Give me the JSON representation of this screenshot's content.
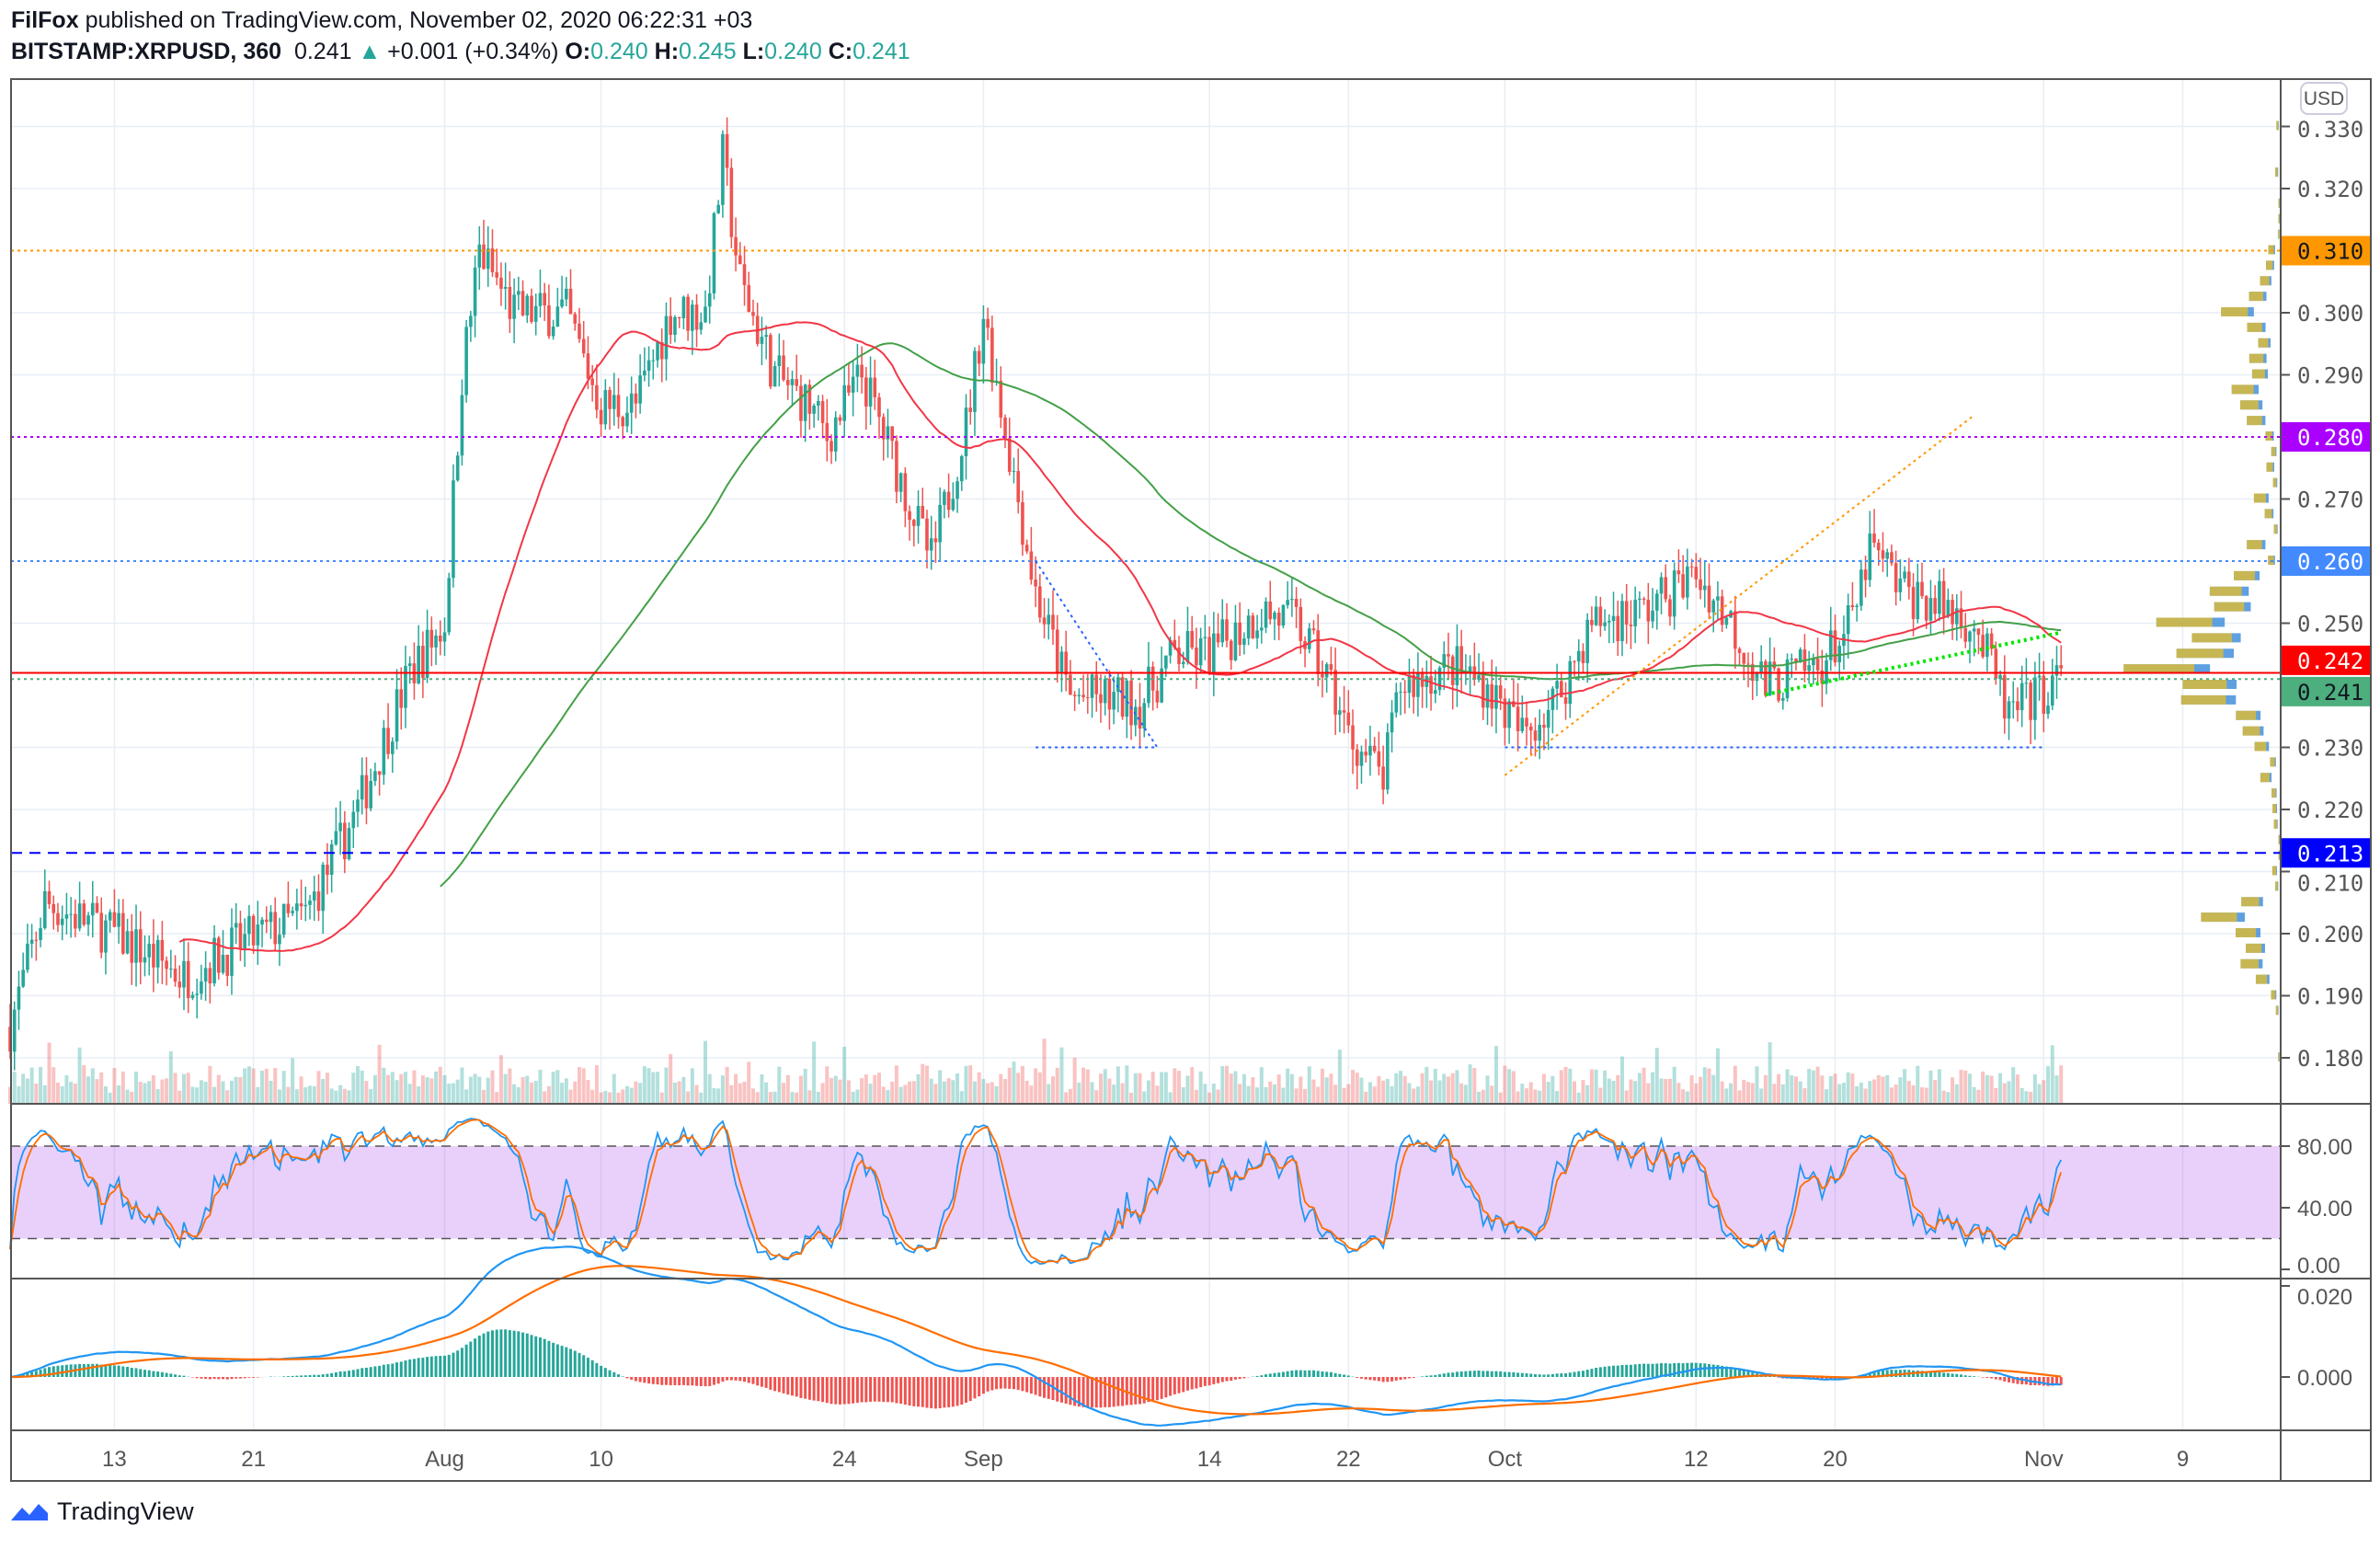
{
  "header": {
    "author": "FilFox",
    "published": "published on TradingView.com, November 02, 2020 06:22:31 +03",
    "symbol": "BITSTAMP:XRPUSD, 360",
    "last": "0.241",
    "change": "+0.001 (+0.34%)",
    "o_label": "O:",
    "o": "0.240",
    "h_label": "H:",
    "h": "0.245",
    "l_label": "L:",
    "l": "0.240",
    "c_label": "C:",
    "c": "0.241"
  },
  "footer": {
    "brand": "TradingView"
  },
  "colors": {
    "up": "#26a69a",
    "down": "#ef5350",
    "ma_slow": "#43a047",
    "ma_fast": "#f23645",
    "stoch_k": "#2196f3",
    "stoch_d": "#ff6d00"
  },
  "chart_data": {
    "type": "candlestick",
    "currency": "USD",
    "interval_hours": 6,
    "y_ticks": [
      "0.330",
      "0.320",
      "0.300",
      "0.290",
      "0.270",
      "0.250",
      "0.230",
      "0.220",
      "0.210",
      "0.200",
      "0.190",
      "0.180"
    ],
    "ylim": [
      0.1755,
      0.3365
    ],
    "x_ticks": [
      {
        "label": "13",
        "day": 6
      },
      {
        "label": "21",
        "day": 14
      },
      {
        "label": "Aug",
        "day": 25
      },
      {
        "label": "10",
        "day": 34
      },
      {
        "label": "24",
        "day": 48
      },
      {
        "label": "Sep",
        "day": 56
      },
      {
        "label": "14",
        "day": 69
      },
      {
        "label": "22",
        "day": 77
      },
      {
        "label": "Oct",
        "day": 86
      },
      {
        "label": "12",
        "day": 97
      },
      {
        "label": "20",
        "day": 105
      },
      {
        "label": "Nov",
        "day": 117
      },
      {
        "label": "9",
        "day": 125
      }
    ],
    "price_path_keypoints": [
      [
        0,
        0.185
      ],
      [
        2,
        0.205
      ],
      [
        6,
        0.2
      ],
      [
        10,
        0.193
      ],
      [
        13,
        0.198
      ],
      [
        17,
        0.203
      ],
      [
        20,
        0.22
      ],
      [
        23,
        0.242
      ],
      [
        25,
        0.25
      ],
      [
        26,
        0.29
      ],
      [
        27,
        0.31
      ],
      [
        29,
        0.3
      ],
      [
        32,
        0.3
      ],
      [
        34,
        0.285
      ],
      [
        36,
        0.285
      ],
      [
        38,
        0.3
      ],
      [
        40,
        0.3
      ],
      [
        41,
        0.325
      ],
      [
        42,
        0.305
      ],
      [
        44,
        0.29
      ],
      [
        46,
        0.285
      ],
      [
        47,
        0.28
      ],
      [
        49,
        0.29
      ],
      [
        51,
        0.275
      ],
      [
        53,
        0.26
      ],
      [
        55,
        0.282
      ],
      [
        56,
        0.3
      ],
      [
        57,
        0.285
      ],
      [
        59,
        0.255
      ],
      [
        61,
        0.238
      ],
      [
        63,
        0.238
      ],
      [
        65,
        0.237
      ],
      [
        67,
        0.245
      ],
      [
        69,
        0.245
      ],
      [
        72,
        0.252
      ],
      [
        74,
        0.25
      ],
      [
        76,
        0.24
      ],
      [
        77,
        0.232
      ],
      [
        79,
        0.225
      ],
      [
        80,
        0.24
      ],
      [
        83,
        0.243
      ],
      [
        85,
        0.24
      ],
      [
        87,
        0.232
      ],
      [
        89,
        0.238
      ],
      [
        91,
        0.25
      ],
      [
        94,
        0.252
      ],
      [
        97,
        0.258
      ],
      [
        99,
        0.25
      ],
      [
        101,
        0.24
      ],
      [
        104,
        0.243
      ],
      [
        106,
        0.25
      ],
      [
        107,
        0.262
      ],
      [
        109,
        0.255
      ],
      [
        111,
        0.253
      ],
      [
        113,
        0.25
      ],
      [
        115,
        0.235
      ],
      [
        118,
        0.241
      ]
    ],
    "price_labels": [
      {
        "value": "0.310",
        "color": "#ff9800",
        "text_color": "#131722",
        "line": "dotted"
      },
      {
        "value": "0.280",
        "color": "#aa00ff",
        "text_color": "#ffffff",
        "line": "dotted"
      },
      {
        "value": "0.260",
        "color": "#448aff",
        "text_color": "#ffffff",
        "line": "dotted"
      },
      {
        "value": "0.242",
        "color": "#ff0000",
        "text_color": "#ffffff",
        "line": "solid"
      },
      {
        "value": "0.241",
        "color": "#4caf7d",
        "text_color": "#131722",
        "line": "dotted"
      },
      {
        "value": "0.213",
        "color": "#0000ff",
        "text_color": "#ffffff",
        "line": "dashed"
      }
    ],
    "trendlines": [
      {
        "name": "blue-descending-line",
        "from": [
          59,
          0.26
        ],
        "to": [
          66,
          0.23
        ],
        "color": "#2962ff"
      },
      {
        "name": "blue-support-line-sep",
        "from": [
          59,
          0.23
        ],
        "to": [
          66,
          0.23
        ],
        "color": "#2962ff"
      },
      {
        "name": "blue-support-line-oct",
        "from": [
          86,
          0.23
        ],
        "to": [
          117,
          0.23
        ],
        "color": "#2962ff"
      },
      {
        "name": "orange-ascending-line",
        "from": [
          86,
          0.2255
        ],
        "to": [
          113,
          0.2835
        ],
        "color": "#ff9800"
      },
      {
        "name": "green-ascending-line",
        "from": [
          101,
          0.2385
        ],
        "to": [
          118,
          0.2485
        ],
        "color": "#00e600"
      }
    ],
    "stoch": {
      "ticks": [
        "80.00",
        "40.00",
        "0.00"
      ],
      "upper": 80,
      "lower": 20
    },
    "macd": {
      "ticks": [
        "0.020",
        "0.000"
      ]
    }
  }
}
